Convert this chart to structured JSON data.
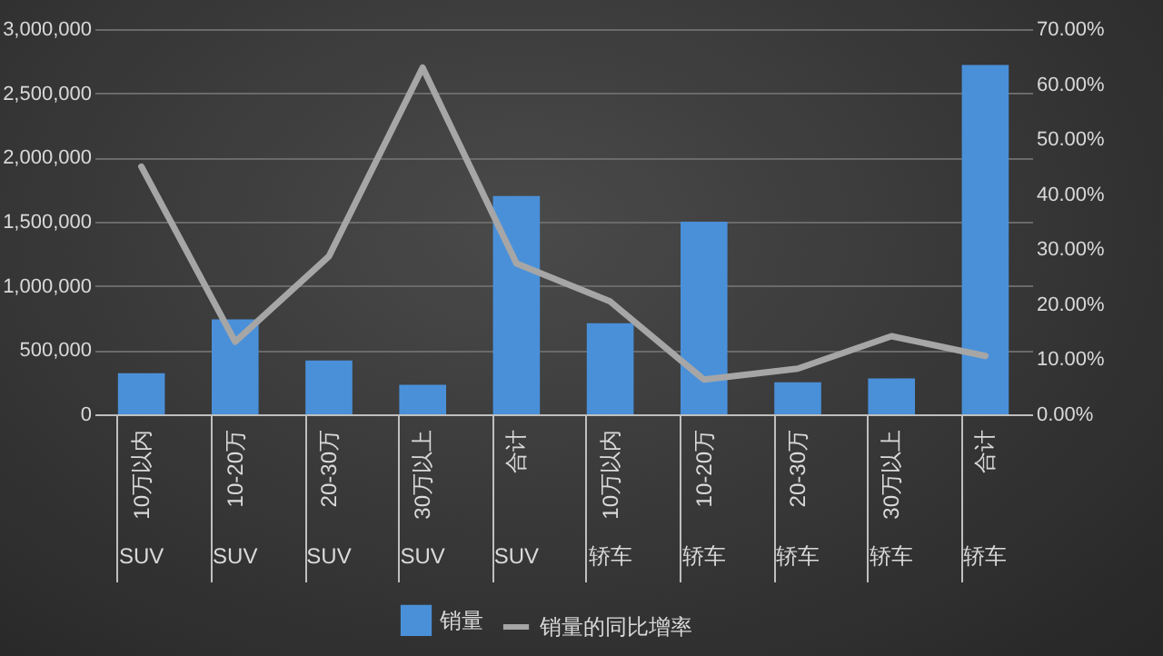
{
  "chart_data": {
    "type": "bar",
    "categories": [
      "10万以内",
      "10-20万",
      "20-30万",
      "30万以上",
      "合计",
      "10万以内",
      "10-20万",
      "20-30万",
      "30万以上",
      "合计"
    ],
    "annotations": [
      "SUV",
      "SUV",
      "SUV",
      "SUV",
      "SUV",
      "轿车",
      "轿车",
      "轿车",
      "轿车",
      "轿车"
    ],
    "series": [
      {
        "name": "销量",
        "color": "#4a90d9",
        "values": [
          320000,
          740000,
          420000,
          230000,
          1700000,
          710000,
          1500000,
          250000,
          280000,
          2720000
        ]
      },
      {
        "name": "销量的同比增率",
        "type": "line",
        "axis": "y2",
        "color": "#a6a6a6",
        "values": [
          45,
          13.2,
          28.7,
          63,
          27.4,
          20.5,
          6.3,
          8.3,
          14.2,
          10.6
        ]
      }
    ],
    "ylim": [
      0,
      3000000
    ],
    "yticks": [
      {
        "value": 0,
        "label": "0"
      },
      {
        "value": 500000,
        "label": "500,000"
      },
      {
        "value": 1000000,
        "label": "1,000,000"
      },
      {
        "value": 1500000,
        "label": "1,500,000"
      },
      {
        "value": 2000000,
        "label": "2,000,000"
      },
      {
        "value": 2500000,
        "label": "2,500,000"
      },
      {
        "value": 3000000,
        "label": "3,000,000"
      }
    ],
    "y2lim": [
      0,
      70
    ],
    "y2ticks": [
      {
        "value": 0,
        "label": "0.00%"
      },
      {
        "value": 10,
        "label": "10.00%"
      },
      {
        "value": 20,
        "label": "20.00%"
      },
      {
        "value": 30,
        "label": "30.00%"
      },
      {
        "value": 40,
        "label": "40.00%"
      },
      {
        "value": 50,
        "label": "50.00%"
      },
      {
        "value": 60,
        "label": "60.00%"
      },
      {
        "value": 70,
        "label": "70.00%"
      }
    ],
    "grid": "y",
    "legend": "bottom",
    "marker": "none",
    "line_style": "solid"
  }
}
